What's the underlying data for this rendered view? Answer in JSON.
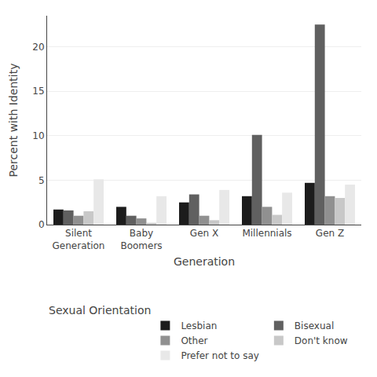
{
  "chart_data": {
    "type": "bar",
    "categories": [
      "Silent\nGeneration",
      "Baby\nBoomers",
      "Gen X",
      "Millennials",
      "Gen Z"
    ],
    "series": [
      {
        "name": "Lesbian",
        "color": "#1c1c1c",
        "values": [
          1.7,
          2.0,
          2.5,
          3.2,
          4.7
        ]
      },
      {
        "name": "Bisexual",
        "color": "#606060",
        "values": [
          1.6,
          1.0,
          3.4,
          10.1,
          22.5
        ]
      },
      {
        "name": "Other",
        "color": "#909090",
        "values": [
          1.0,
          0.7,
          1.0,
          2.0,
          3.2
        ]
      },
      {
        "name": "Don't know",
        "color": "#c8c8c8",
        "values": [
          1.5,
          0.2,
          0.5,
          1.1,
          3.0
        ]
      },
      {
        "name": "Prefer not to say",
        "color": "#e8e8e8",
        "values": [
          5.1,
          3.2,
          3.9,
          3.6,
          4.5
        ]
      }
    ],
    "xlabel": "Generation",
    "ylabel": "Percent with Identity",
    "legend_title": "Sexual Orientation",
    "legend": "bottom",
    "ylim": [
      0,
      23.5
    ],
    "yticks": [
      0,
      5,
      10,
      15,
      20
    ],
    "grid": true
  }
}
